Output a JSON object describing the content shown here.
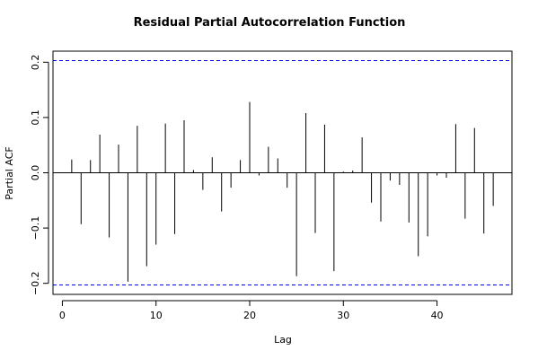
{
  "chart_data": {
    "type": "bar",
    "title": "Residual Partial Autocorrelation Function",
    "xlabel": "Lag",
    "ylabel": "Partial ACF",
    "xlim": [
      -1,
      48
    ],
    "ylim": [
      -0.22,
      0.22
    ],
    "x_ticks": [
      0,
      10,
      20,
      30,
      40
    ],
    "y_ticks": [
      -0.2,
      -0.1,
      0.0,
      0.1,
      0.2
    ],
    "x_tick_labels": [
      "0",
      "10",
      "20",
      "30",
      "40"
    ],
    "y_tick_labels": [
      "−0.2",
      "−0.1",
      "0.0",
      "0.1",
      "0.2"
    ],
    "confidence_limits": [
      0.203,
      -0.203
    ],
    "confidence_color": "#0000ff",
    "bar_color": "#000000",
    "lags": [
      1,
      2,
      3,
      4,
      5,
      6,
      7,
      8,
      9,
      10,
      11,
      12,
      13,
      14,
      15,
      16,
      17,
      18,
      19,
      20,
      21,
      22,
      23,
      24,
      25,
      26,
      27,
      28,
      29,
      30,
      31,
      32,
      33,
      34,
      35,
      36,
      37,
      38,
      39,
      40,
      41,
      42,
      43,
      44,
      45,
      46
    ],
    "values": [
      0.024,
      -0.093,
      0.023,
      0.069,
      -0.117,
      0.051,
      -0.197,
      0.085,
      -0.169,
      -0.13,
      0.089,
      -0.111,
      0.095,
      0.005,
      -0.031,
      0.028,
      -0.07,
      -0.027,
      0.023,
      0.128,
      -0.005,
      0.047,
      0.026,
      -0.027,
      -0.187,
      0.108,
      -0.109,
      0.087,
      -0.178,
      0.002,
      0.004,
      0.064,
      -0.054,
      -0.088,
      -0.014,
      -0.022,
      -0.09,
      -0.151,
      -0.115,
      -0.005,
      -0.009,
      0.088,
      -0.083,
      0.081,
      -0.11,
      -0.06
    ]
  }
}
